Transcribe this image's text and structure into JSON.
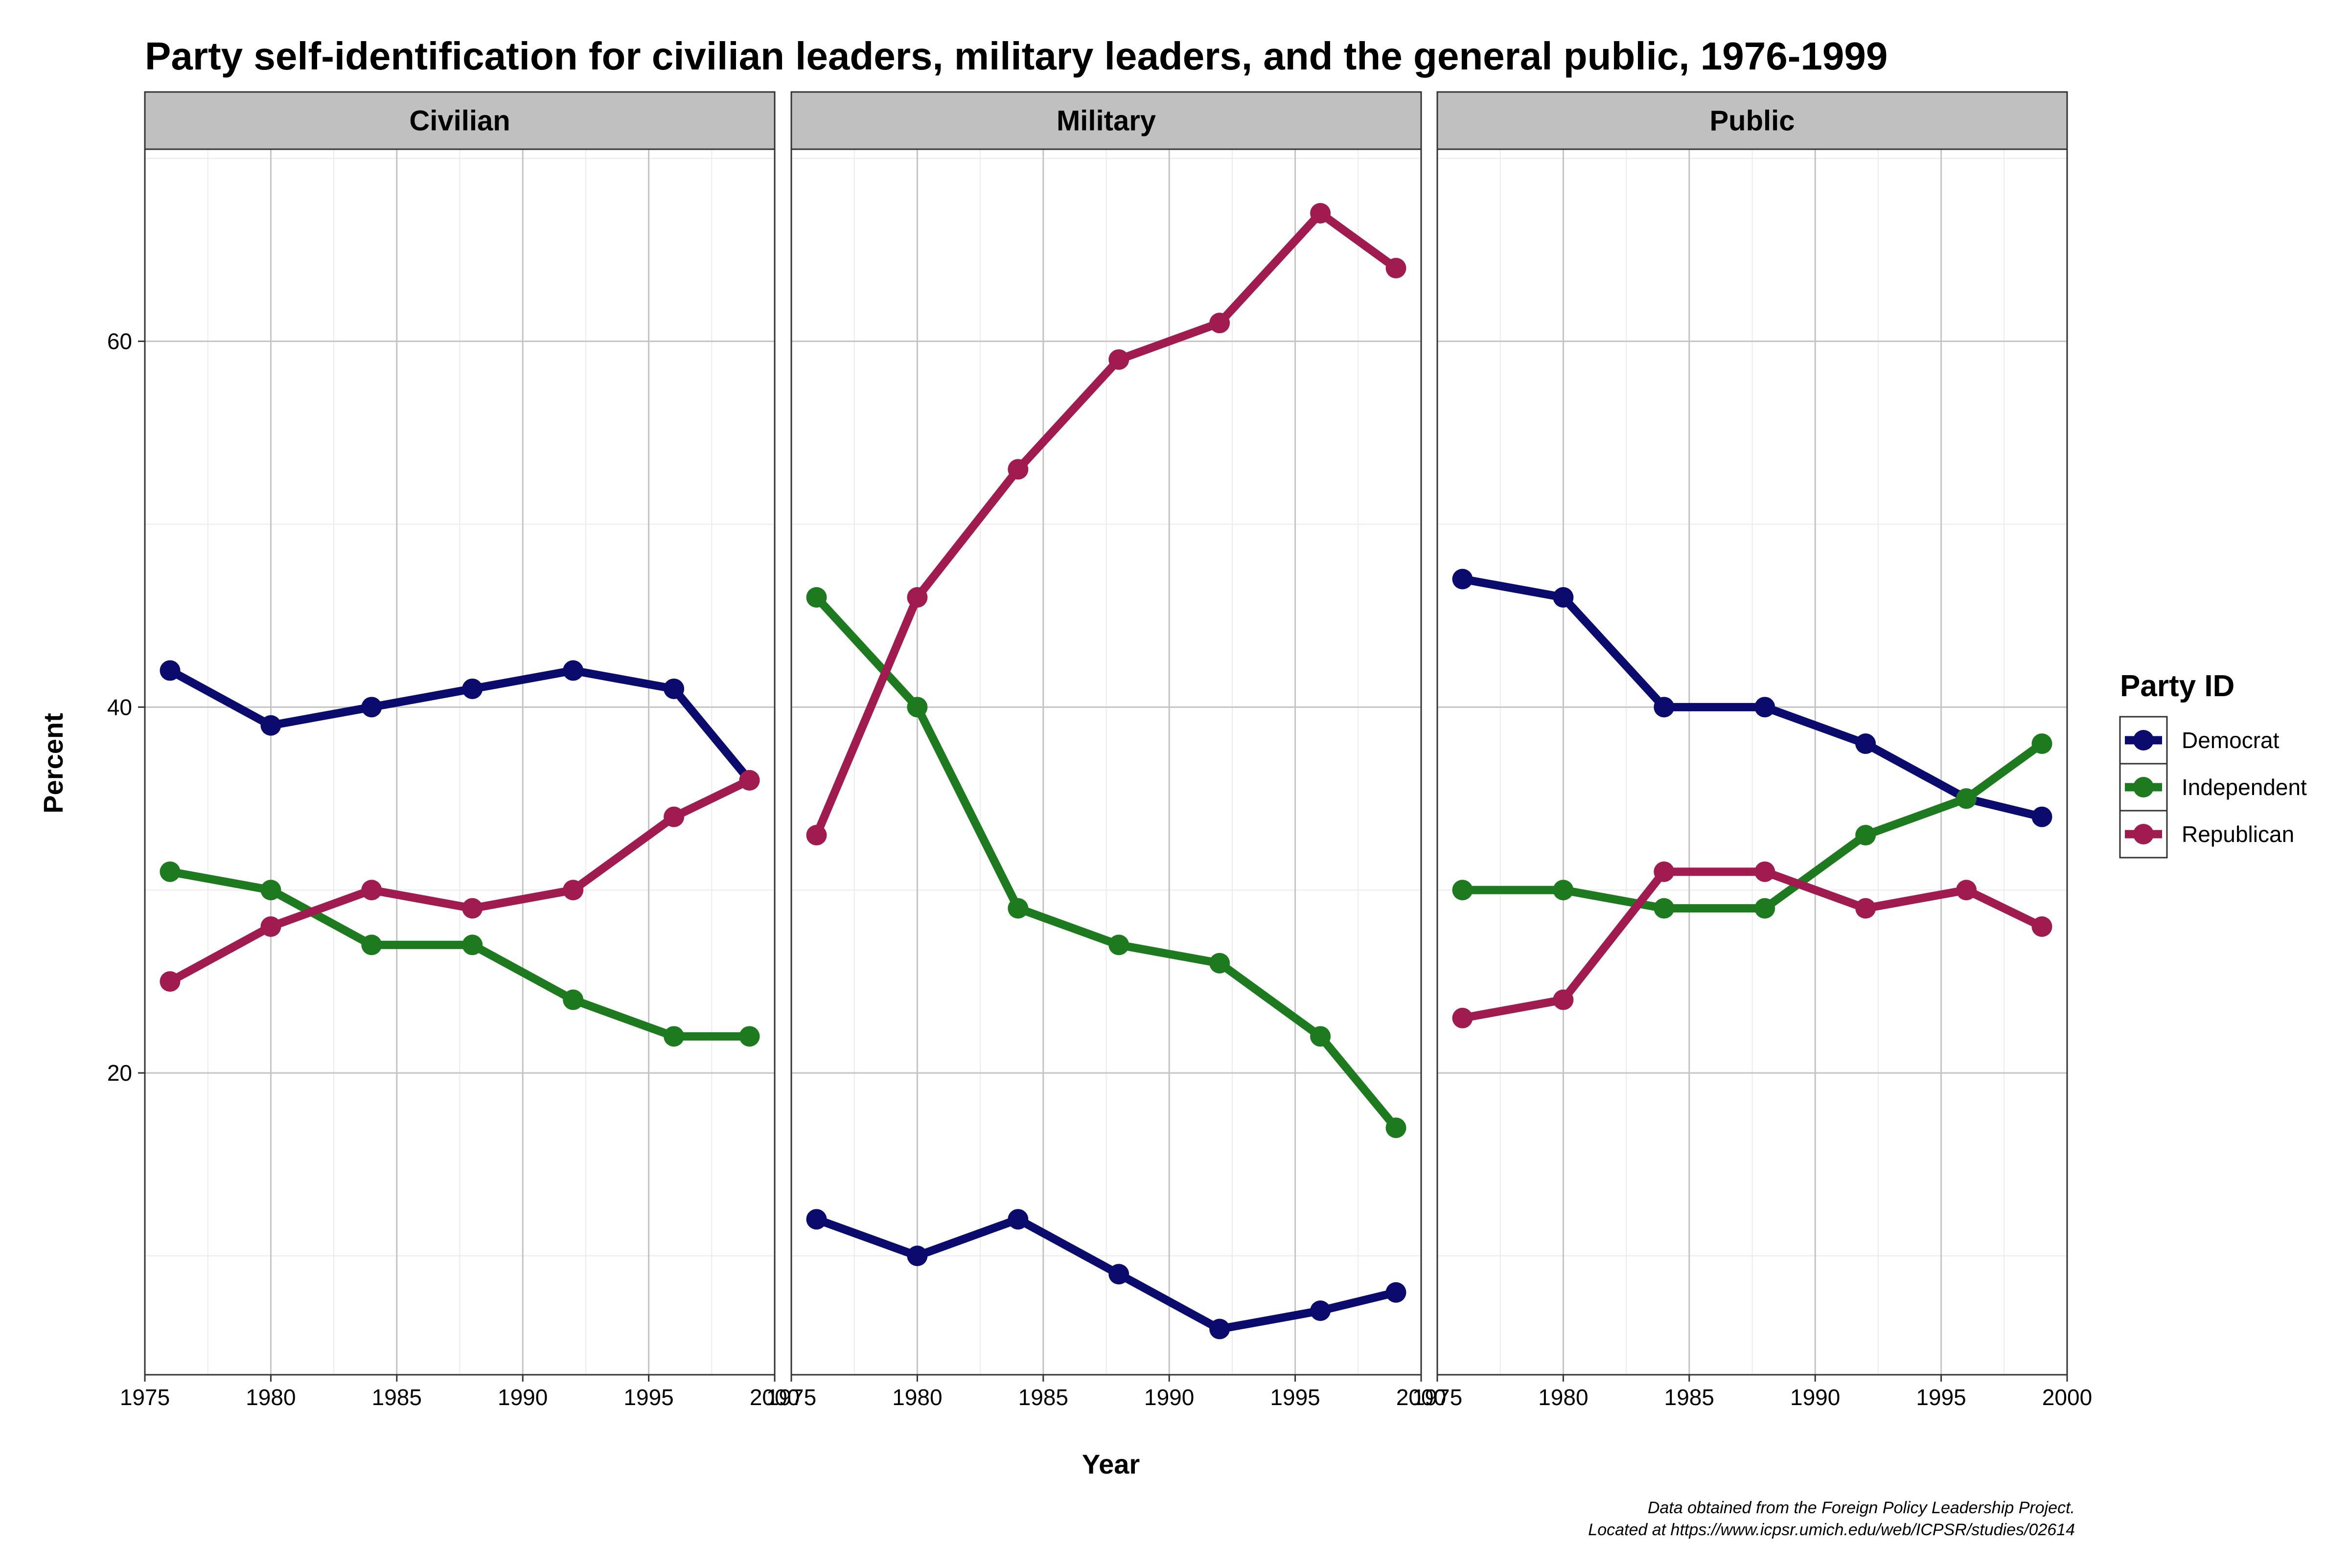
{
  "chart_data": {
    "type": "line",
    "title": "Party self-identification for civilian leaders, military leaders, and the general public, 1976-1999",
    "xlabel": "Year",
    "ylabel": "Percent",
    "xlim": [
      1975,
      2000
    ],
    "ylim": [
      3.5,
      70.5
    ],
    "x_ticks": [
      1975,
      1980,
      1985,
      1990,
      1995,
      2000
    ],
    "x_tick_labels": [
      "1975",
      "1980",
      "1985",
      "1990",
      "1995",
      "2000"
    ],
    "y_ticks": [
      20,
      40,
      60
    ],
    "y_tick_labels": [
      "20",
      "40",
      "60"
    ],
    "grid": true,
    "legend_title": "Party ID",
    "legend_position": "right",
    "colors": {
      "Democrat": "#0b0b6e",
      "Independent": "#1e7a1e",
      "Republican": "#a01c50"
    },
    "panels": [
      {
        "label": "Civilian",
        "series": [
          {
            "name": "Democrat",
            "x": [
              1976,
              1980,
              1984,
              1988,
              1992,
              1996,
              1999
            ],
            "values": [
              42,
              39,
              40,
              41,
              42,
              41,
              36
            ]
          },
          {
            "name": "Independent",
            "x": [
              1976,
              1980,
              1984,
              1988,
              1992,
              1996,
              1999
            ],
            "values": [
              31,
              30,
              27,
              27,
              24,
              22,
              22
            ]
          },
          {
            "name": "Republican",
            "x": [
              1976,
              1980,
              1984,
              1988,
              1992,
              1996,
              1999
            ],
            "values": [
              25,
              28,
              30,
              29,
              30,
              34,
              36
            ]
          }
        ]
      },
      {
        "label": "Military",
        "series": [
          {
            "name": "Democrat",
            "x": [
              1976,
              1980,
              1984,
              1988,
              1992,
              1996,
              1999
            ],
            "values": [
              12,
              10,
              12,
              9,
              6,
              7,
              8
            ]
          },
          {
            "name": "Independent",
            "x": [
              1976,
              1980,
              1984,
              1988,
              1992,
              1996,
              1999
            ],
            "values": [
              46,
              40,
              29,
              27,
              26,
              22,
              17
            ]
          },
          {
            "name": "Republican",
            "x": [
              1976,
              1980,
              1984,
              1988,
              1992,
              1996,
              1999
            ],
            "values": [
              33,
              46,
              53,
              59,
              61,
              67,
              64
            ]
          }
        ]
      },
      {
        "label": "Public",
        "series": [
          {
            "name": "Democrat",
            "x": [
              1976,
              1980,
              1984,
              1988,
              1992,
              1996,
              1999
            ],
            "values": [
              47,
              46,
              40,
              40,
              38,
              35,
              34
            ]
          },
          {
            "name": "Independent",
            "x": [
              1976,
              1980,
              1984,
              1988,
              1992,
              1996,
              1999
            ],
            "values": [
              30,
              30,
              29,
              29,
              33,
              35,
              38
            ]
          },
          {
            "name": "Republican",
            "x": [
              1976,
              1980,
              1984,
              1988,
              1992,
              1996,
              1999
            ],
            "values": [
              23,
              24,
              31,
              31,
              29,
              30,
              28
            ]
          }
        ]
      }
    ],
    "caption": [
      "Data obtained from the Foreign Policy Leadership Project.",
      "Located at https://www.icpsr.umich.edu/web/ICPSR/studies/02614"
    ]
  }
}
